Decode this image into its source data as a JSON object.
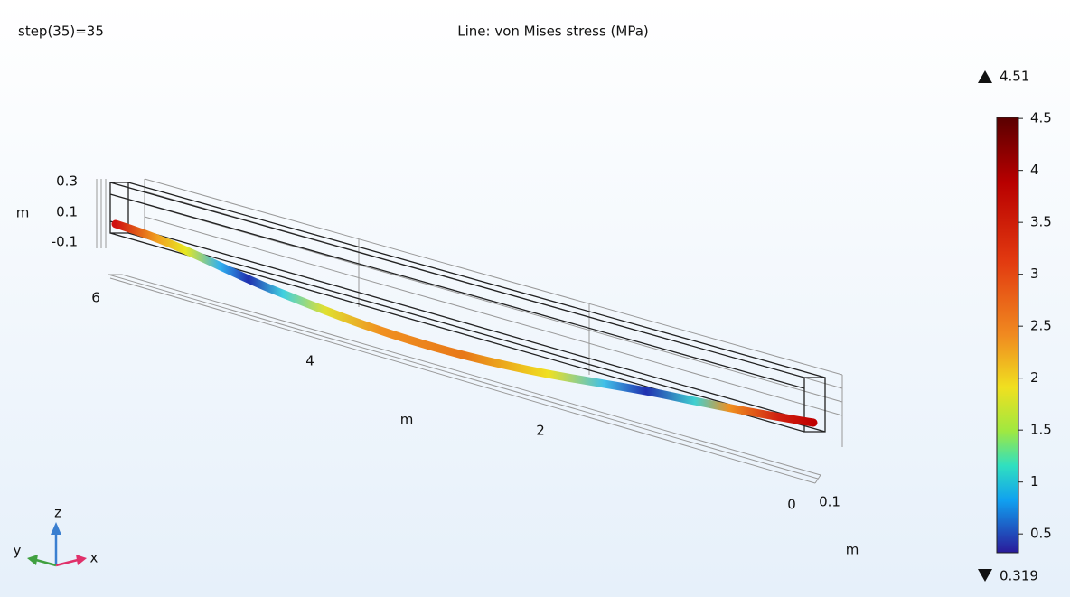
{
  "header": {
    "left": "step(35)=35",
    "title": "Line: von Mises stress (MPa)"
  },
  "colorbar": {
    "max": 4.51,
    "min": 0.319,
    "ticks": [
      0.5,
      1,
      1.5,
      2,
      2.5,
      3,
      3.5,
      4,
      4.5
    ]
  },
  "axes": {
    "z_ticks": [
      "0.3",
      "0.1",
      "-0.1"
    ],
    "z_unit": "m",
    "y_ticks": [
      "6",
      "4",
      "2",
      "0"
    ],
    "y_unit": "m",
    "x_ticks": [
      "0.1"
    ],
    "x_unit": "m"
  },
  "triad": {
    "x": "x",
    "y": "y",
    "z": "z"
  }
}
